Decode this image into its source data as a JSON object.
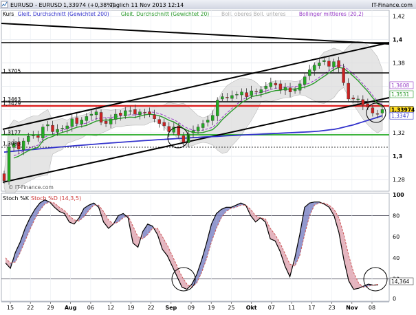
{
  "header": {
    "title": "EURUSD - EURUSD",
    "price_change": "1,33974 (+0,38%)",
    "period_time": "Täglich  11 Nov 2013 12:14",
    "brand": "IT-Finance.com"
  },
  "legend": {
    "items": [
      {
        "label": "Kurs",
        "color": "#000000"
      },
      {
        "label": "Gleit. Durchschnitt (Gewichtet 200)",
        "color": "#3333cc"
      },
      {
        "label": "Gleit. Durchschnitt (Gewichtet 20)",
        "color": "#2a9a2a"
      },
      {
        "label": "Boll. oberes Boll. unteres",
        "color": "#c8c8c8"
      },
      {
        "label": "Bollinger mittleres (20,2)",
        "color": "#9a40c8"
      }
    ]
  },
  "watermark": "© IT-Finance.com",
  "colors": {
    "up_candle": "#22aa22",
    "down_candle": "#cc2222",
    "ma200": "#3333cc",
    "ma20": "#2a9a2a",
    "boll_band": "#cccccc",
    "boll_mid": "#9a40c8",
    "support_red": "#dd2222",
    "support_green": "#22aa22",
    "stoch_k": "#5555aa",
    "stoch_d": "#cc7777"
  },
  "chart_data": [
    {
      "type": "candlestick",
      "ylim": [
        1.27,
        1.425
      ],
      "y_ticks": [
        "1,42",
        "1,4",
        "1,38",
        "1,36",
        "1,34",
        "1,32",
        "1,3",
        "1,28"
      ],
      "x_ticks": [
        "15",
        "22",
        "29",
        "Aug",
        "06",
        "12",
        "19",
        "22",
        "Sep",
        "09",
        "19",
        "25",
        "Okt",
        "07",
        "11",
        "17",
        "23",
        "Nov",
        "08"
      ],
      "level_labels": [
        {
          "text": "1,3705",
          "value": 1.3705
        },
        {
          "text": "1,3463",
          "value": 1.3463
        },
        {
          "text": "1,3429",
          "value": 1.3429
        },
        {
          "text": "1,3177",
          "value": 1.3177
        },
        {
          "text": "1,3083",
          "value": 1.3083
        }
      ],
      "right_labels": [
        {
          "text": "1,3608",
          "value": 1.3608,
          "color": "#9a40c8"
        },
        {
          "text": "1,3531",
          "value": 1.3531,
          "color": "#2a9a2a"
        },
        {
          "text": "1,33974",
          "value": 1.33974,
          "color": "#000000",
          "bg": "#ffdd22"
        },
        {
          "text": "1,3347",
          "value": 1.3347,
          "color": "#3333cc"
        }
      ],
      "closes": [
        1.279,
        1.308,
        1.311,
        1.306,
        1.313,
        1.317,
        1.318,
        1.316,
        1.325,
        1.327,
        1.321,
        1.323,
        1.324,
        1.326,
        1.332,
        1.328,
        1.331,
        1.334,
        1.336,
        1.338,
        1.329,
        1.328,
        1.332,
        1.336,
        1.335,
        1.339,
        1.339,
        1.336,
        1.338,
        1.337,
        1.336,
        1.332,
        1.328,
        1.326,
        1.321,
        1.325,
        1.318,
        1.312,
        1.319,
        1.322,
        1.325,
        1.328,
        1.331,
        1.335,
        1.348,
        1.351,
        1.35,
        1.352,
        1.353,
        1.355,
        1.351,
        1.356,
        1.355,
        1.357,
        1.36,
        1.363,
        1.361,
        1.357,
        1.359,
        1.355,
        1.357,
        1.362,
        1.368,
        1.374,
        1.378,
        1.38,
        1.382,
        1.377,
        1.381,
        1.376,
        1.363,
        1.349,
        1.349,
        1.349,
        1.344,
        1.342,
        1.337,
        1.336,
        1.34
      ],
      "ma200": [
        1.3035,
        1.3039,
        1.3043,
        1.3047,
        1.3051,
        1.3054,
        1.3058,
        1.3062,
        1.3066,
        1.3069,
        1.3073,
        1.3077,
        1.308,
        1.3084,
        1.3087,
        1.3091,
        1.3094,
        1.3097,
        1.3101,
        1.3104,
        1.3107,
        1.311,
        1.3113,
        1.3116,
        1.3119,
        1.3122,
        1.3125,
        1.3128,
        1.3131,
        1.3134,
        1.3136,
        1.3139,
        1.3142,
        1.3144,
        1.3147,
        1.3149,
        1.3152,
        1.3154,
        1.3157,
        1.3159,
        1.3161,
        1.3164,
        1.3166,
        1.3168,
        1.317,
        1.3172,
        1.3175,
        1.3177,
        1.3179,
        1.3181,
        1.3183,
        1.3185,
        1.3187,
        1.3189,
        1.3191,
        1.3193,
        1.3195,
        1.3197,
        1.3199,
        1.3201,
        1.3203,
        1.3205,
        1.3207,
        1.3209,
        1.3212,
        1.3215,
        1.322,
        1.3225,
        1.323,
        1.3238,
        1.3248,
        1.3258,
        1.3268,
        1.3281,
        1.3294,
        1.3307,
        1.332,
        1.3333,
        1.3347
      ],
      "stochastic": {
        "ylim": [
          0,
          100
        ],
        "y_ticks": [
          "100",
          "80",
          "60",
          "40",
          "20",
          "0"
        ],
        "reference_lines": [
          80,
          20
        ],
        "title_k": "Stoch %K",
        "title_d": "Stoch %D (14,3,5)",
        "last_value": "14,364",
        "k": [
          35,
          30,
          45,
          55,
          68,
          78,
          86,
          92,
          95,
          93,
          88,
          84,
          82,
          74,
          72,
          78,
          87,
          90,
          92,
          88,
          74,
          68,
          72,
          80,
          82,
          78,
          54,
          50,
          65,
          72,
          70,
          62,
          48,
          42,
          32,
          22,
          12,
          10,
          15,
          24,
          38,
          54,
          72,
          82,
          86,
          88,
          88,
          90,
          92,
          90,
          80,
          74,
          78,
          74,
          58,
          56,
          46,
          32,
          22,
          40,
          62,
          88,
          92,
          93,
          93,
          91,
          88,
          80,
          64,
          38,
          18,
          10,
          11,
          13,
          15,
          14,
          14.4
        ],
        "d": [
          40,
          35,
          36,
          45,
          56,
          67,
          77,
          85,
          91,
          93,
          92,
          88,
          85,
          80,
          76,
          75,
          79,
          85,
          90,
          90,
          84,
          76,
          72,
          74,
          78,
          80,
          70,
          60,
          58,
          62,
          68,
          68,
          60,
          52,
          42,
          32,
          22,
          15,
          12,
          16,
          26,
          39,
          55,
          68,
          78,
          84,
          87,
          88,
          90,
          90,
          86,
          80,
          78,
          77,
          68,
          62,
          54,
          44,
          34,
          32,
          42,
          62,
          80,
          90,
          92,
          92,
          90,
          86,
          78,
          62,
          42,
          26,
          16,
          12,
          13,
          14,
          14.8
        ]
      }
    }
  ]
}
